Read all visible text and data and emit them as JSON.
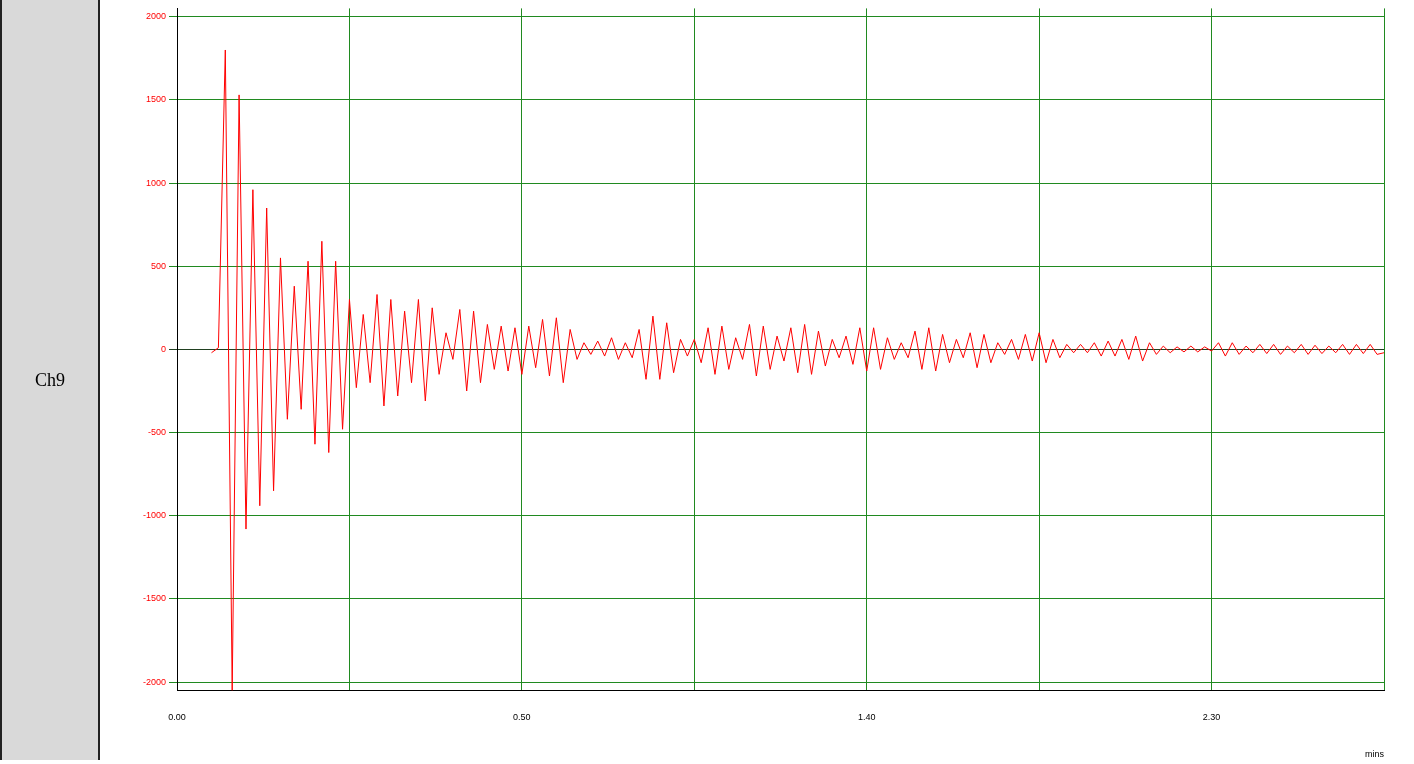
{
  "chart_data": {
    "type": "line",
    "ylabel": "Ch9",
    "xlabel": "mins",
    "ylim": [
      -2050,
      2050
    ],
    "categories": [
      "0.00",
      null,
      null,
      null,
      null,
      null,
      null,
      null,
      null,
      null,
      null,
      null,
      null,
      null,
      null,
      null,
      null,
      null,
      null,
      null,
      null,
      null,
      null,
      null,
      null,
      null,
      null,
      null,
      null,
      null,
      null,
      null,
      null,
      null,
      null,
      null,
      null,
      null,
      null,
      null,
      null,
      null,
      null,
      null,
      null,
      null,
      null,
      null,
      null,
      null,
      "0.50",
      null,
      null,
      null,
      null,
      null,
      null,
      null,
      null,
      null,
      null,
      null,
      null,
      null,
      null,
      null,
      null,
      null,
      null,
      null,
      null,
      null,
      null,
      null,
      null,
      null,
      null,
      null,
      null,
      null,
      null,
      null,
      null,
      null,
      null,
      null,
      null,
      null,
      null,
      null,
      null,
      null,
      null,
      null,
      null,
      null,
      null,
      null,
      null,
      null,
      "1.40",
      null,
      null,
      null,
      null,
      null,
      null,
      null,
      null,
      null,
      null,
      null,
      null,
      null,
      null,
      null,
      null,
      null,
      null,
      null,
      null,
      null,
      null,
      null,
      null,
      null,
      null,
      null,
      null,
      null,
      null,
      null,
      null,
      null,
      null,
      null,
      null,
      null,
      null,
      null,
      null,
      null,
      null,
      null,
      null,
      null,
      null,
      null,
      null,
      null,
      "2.30",
      null,
      null,
      null,
      null,
      null,
      null,
      null,
      null,
      null,
      null,
      null,
      null,
      null,
      null,
      null,
      null,
      null,
      null,
      null,
      null,
      null,
      null,
      null,
      null,
      null
    ],
    "yticks": [
      -2000,
      -1500,
      -1000,
      -500,
      0,
      500,
      1000,
      1500,
      2000
    ],
    "grid": true,
    "legend": false,
    "marker": "none",
    "line_style": "solid",
    "series": [
      {
        "color": "#ff0000",
        "values": [
          null,
          null,
          null,
          null,
          null,
          -20,
          10,
          1800,
          -2050,
          1530,
          -1080,
          960,
          -940,
          850,
          -850,
          550,
          -420,
          380,
          -360,
          530,
          -570,
          650,
          -620,
          530,
          -480,
          300,
          -230,
          210,
          -200,
          330,
          -340,
          300,
          -280,
          230,
          -200,
          300,
          -310,
          250,
          -150,
          100,
          -60,
          240,
          -250,
          230,
          -200,
          150,
          -120,
          140,
          -130,
          130,
          -150,
          140,
          -110,
          180,
          -160,
          190,
          -200,
          120,
          -60,
          40,
          -30,
          50,
          -40,
          70,
          -60,
          40,
          -50,
          120,
          -180,
          200,
          -180,
          160,
          -140,
          60,
          -40,
          60,
          -80,
          130,
          -150,
          140,
          -120,
          70,
          -60,
          150,
          -160,
          140,
          -120,
          80,
          -70,
          130,
          -140,
          150,
          -150,
          110,
          -100,
          60,
          -50,
          80,
          -90,
          130,
          -130,
          130,
          -120,
          70,
          -60,
          40,
          -50,
          110,
          -120,
          130,
          -130,
          90,
          -80,
          60,
          -50,
          100,
          -110,
          90,
          -80,
          40,
          -30,
          60,
          -60,
          90,
          -70,
          100,
          -80,
          60,
          -50,
          30,
          -20,
          30,
          -20,
          40,
          -40,
          50,
          -40,
          60,
          -60,
          80,
          -70,
          40,
          -30,
          20,
          -20,
          15,
          -15,
          20,
          -15,
          15,
          -10,
          40,
          -40,
          40,
          -30,
          20,
          -20,
          30,
          -25,
          30,
          -30,
          20,
          -20,
          30,
          -30,
          25,
          -25,
          20,
          -20,
          30,
          -30,
          30,
          -25,
          30,
          -30,
          -20
        ]
      }
    ]
  }
}
